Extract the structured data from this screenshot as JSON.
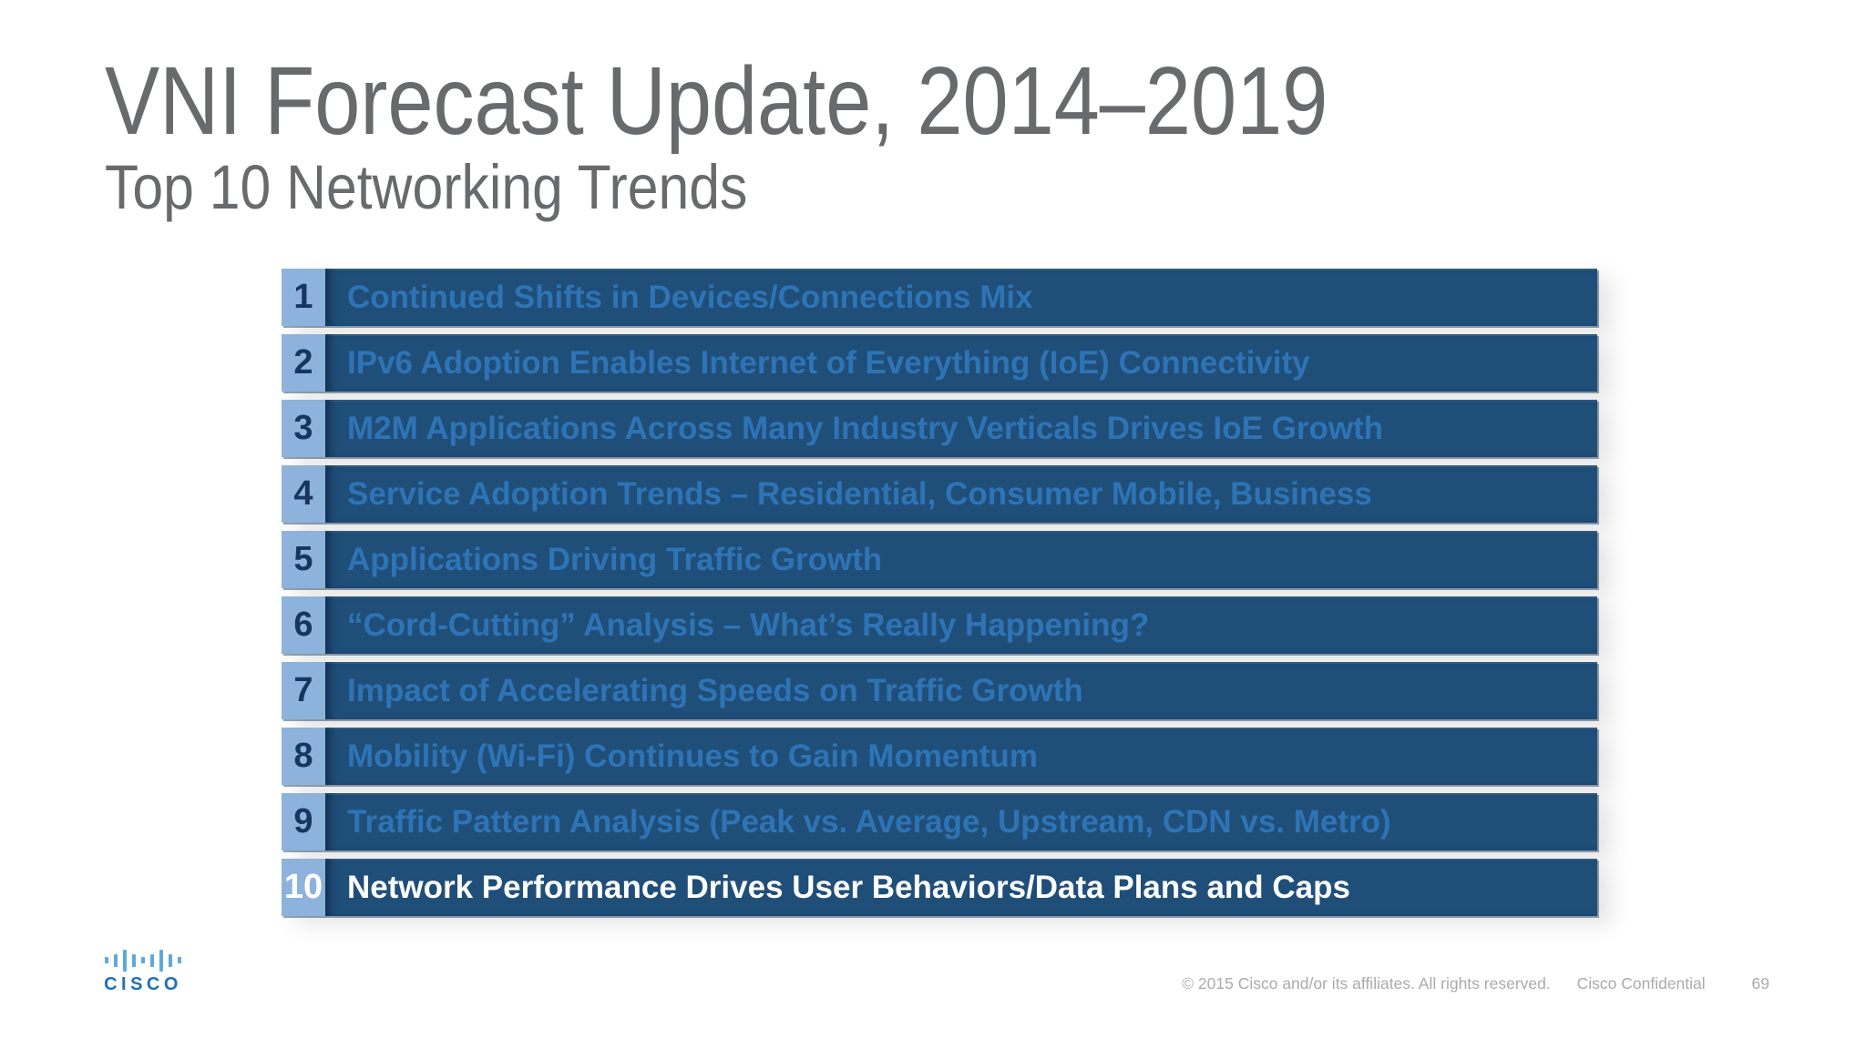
{
  "colors": {
    "title_gray": "#696A6C",
    "row_bg": "#1F4E79",
    "row_text": "#2E74B5",
    "num_bg": "#8DB3DC",
    "num_text": "#17365D",
    "highlight_text": "#FFFFFF",
    "footer_gray": "#ABABAB",
    "logo_bars": "#5EA9DC",
    "logo_text": "#1F70B8"
  },
  "header": {
    "title": "VNI Forecast Update, 2014–2019",
    "subtitle": "Top 10 Networking Trends"
  },
  "trends": [
    {
      "num": "1",
      "label": "Continued Shifts in Devices/Connections Mix",
      "highlight": false
    },
    {
      "num": "2",
      "label": "IPv6 Adoption Enables Internet of Everything (IoE) Connectivity",
      "highlight": false
    },
    {
      "num": "3",
      "label": "M2M Applications Across Many Industry Verticals Drives IoE Growth",
      "highlight": false
    },
    {
      "num": "4",
      "label": "Service Adoption Trends – Residential, Consumer Mobile, Business",
      "highlight": false
    },
    {
      "num": "5",
      "label": "Applications Driving Traffic Growth",
      "highlight": false
    },
    {
      "num": "6",
      "label": "“Cord-Cutting” Analysis – What’s Really Happening?",
      "highlight": false
    },
    {
      "num": "7",
      "label": "Impact of Accelerating Speeds on Traffic Growth",
      "highlight": false
    },
    {
      "num": "8",
      "label": "Mobility (Wi-Fi) Continues to Gain Momentum",
      "highlight": false
    },
    {
      "num": "9",
      "label": "Traffic Pattern Analysis (Peak vs. Average, Upstream, CDN vs. Metro)",
      "highlight": false
    },
    {
      "num": "10",
      "label": "Network Performance Drives User Behaviors/Data Plans and Caps",
      "highlight": true
    }
  ],
  "footer": {
    "logo_text": "CISCO",
    "copyright": "© 2015  Cisco and/or its affiliates. All rights reserved.",
    "confidential": "Cisco Confidential",
    "page_number": "69"
  }
}
